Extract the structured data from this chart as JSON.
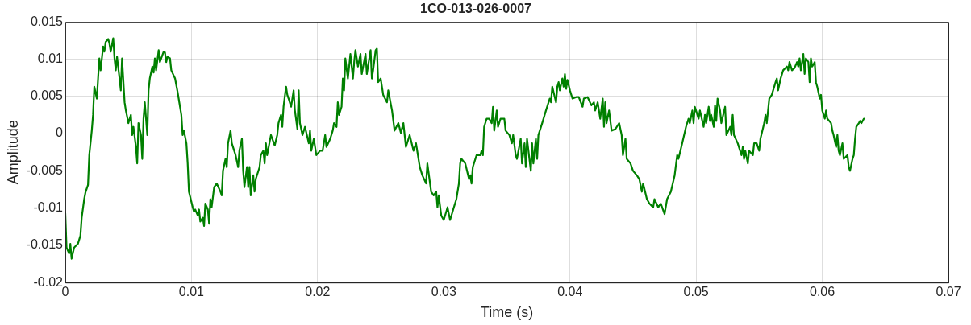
{
  "chart_data": {
    "type": "line",
    "title": "1CO-013-026-0007",
    "xlabel": "Time (s)",
    "ylabel": "Amplitude",
    "xlim": [
      0,
      0.07
    ],
    "xticks": [
      0,
      0.01,
      0.02,
      0.03,
      0.04,
      0.05,
      0.06,
      0.07
    ],
    "ylim": [
      -0.02,
      0.015
    ],
    "yticks": [
      -0.02,
      -0.015,
      -0.01,
      -0.005,
      0,
      0.005,
      0.01,
      0.015
    ],
    "grid": true,
    "legend": false,
    "marker": "none",
    "line_style": "solid",
    "series": [
      {
        "color": "#008000",
        "x": [
          0,
          0.0001,
          0.0003,
          0.0004,
          0.0005,
          0.0007,
          0.001,
          0.0012,
          0.0013,
          0.0015,
          0.0016,
          0.0018,
          0.0019,
          0.0021,
          0.0022,
          0.0023,
          0.0025,
          0.0026,
          0.0027,
          0.0028,
          0.003,
          0.0031,
          0.0032,
          0.0034,
          0.0035,
          0.0036,
          0.0038,
          0.0039,
          0.004,
          0.0041,
          0.0043,
          0.0044,
          0.0045,
          0.0047,
          0.0048,
          0.0049,
          0.005,
          0.0052,
          0.0053,
          0.0054,
          0.0056,
          0.0057,
          0.0058,
          0.006,
          0.0061,
          0.0062,
          0.0063,
          0.0065,
          0.0066,
          0.0067,
          0.0069,
          0.007,
          0.0071,
          0.0072,
          0.0074,
          0.0075,
          0.0076,
          0.0078,
          0.0079,
          0.008,
          0.0081,
          0.0083,
          0.0084,
          0.0087,
          0.0089,
          0.0092,
          0.0093,
          0.0094,
          0.0096,
          0.0097,
          0.0098,
          0.0101,
          0.0102,
          0.0103,
          0.0105,
          0.0106,
          0.0107,
          0.0109,
          0.011,
          0.0111,
          0.0113,
          0.0114,
          0.0115,
          0.0116,
          0.0118,
          0.012,
          0.0123,
          0.0124,
          0.0125,
          0.0127,
          0.0128,
          0.0129,
          0.0131,
          0.0132,
          0.0135,
          0.0137,
          0.0138,
          0.014,
          0.0141,
          0.0142,
          0.0144,
          0.0145,
          0.0146,
          0.0147,
          0.0149,
          0.015,
          0.0151,
          0.0154,
          0.0155,
          0.0157,
          0.0158,
          0.0159,
          0.016,
          0.0163,
          0.0166,
          0.0168,
          0.0169,
          0.0171,
          0.0172,
          0.0173,
          0.0175,
          0.0176,
          0.0177,
          0.0179,
          0.0181,
          0.0182,
          0.0184,
          0.0185,
          0.0186,
          0.0188,
          0.019,
          0.0193,
          0.0194,
          0.0195,
          0.0197,
          0.0199,
          0.0202,
          0.0204,
          0.0206,
          0.0207,
          0.021,
          0.0212,
          0.0213,
          0.0215,
          0.0216,
          0.0217,
          0.0219,
          0.022,
          0.0221,
          0.0222,
          0.0224,
          0.0225,
          0.0226,
          0.0228,
          0.0229,
          0.023,
          0.0232,
          0.0234,
          0.0235,
          0.0238,
          0.0239,
          0.0242,
          0.0243,
          0.0244,
          0.0246,
          0.0247,
          0.0248,
          0.025,
          0.0252,
          0.0255,
          0.0256,
          0.0259,
          0.0261,
          0.0264,
          0.0266,
          0.0268,
          0.027,
          0.0273,
          0.0276,
          0.0278,
          0.0281,
          0.0283,
          0.0286,
          0.0287,
          0.029,
          0.0292,
          0.0294,
          0.0295,
          0.0296,
          0.0298,
          0.03,
          0.0303,
          0.0305,
          0.0308,
          0.031,
          0.0312,
          0.0313,
          0.0314,
          0.0317,
          0.032,
          0.0321,
          0.0322,
          0.0323,
          0.0326,
          0.0329,
          0.033,
          0.0331,
          0.0332,
          0.0334,
          0.0336,
          0.0338,
          0.0339,
          0.034,
          0.0342,
          0.0343,
          0.0345,
          0.0348,
          0.0349,
          0.0352,
          0.0354,
          0.0355,
          0.0357,
          0.0358,
          0.0361,
          0.0362,
          0.0364,
          0.0365,
          0.0366,
          0.0369,
          0.037,
          0.0371,
          0.0373,
          0.0374,
          0.0375,
          0.0378,
          0.0381,
          0.0384,
          0.0385,
          0.0386,
          0.0389,
          0.039,
          0.0391,
          0.0392,
          0.0394,
          0.0395,
          0.0396,
          0.0397,
          0.0398,
          0.04,
          0.0402,
          0.0405,
          0.0407,
          0.041,
          0.0411,
          0.0414,
          0.0417,
          0.0419,
          0.042,
          0.0422,
          0.0424,
          0.0426,
          0.0427,
          0.0428,
          0.0429,
          0.0431,
          0.0433,
          0.0436,
          0.0439,
          0.0441,
          0.0442,
          0.0444,
          0.0445,
          0.0448,
          0.045,
          0.0453,
          0.0455,
          0.0457,
          0.0458,
          0.0461,
          0.0463,
          0.0466,
          0.0467,
          0.047,
          0.0472,
          0.0475,
          0.0477,
          0.048,
          0.0483,
          0.0485,
          0.0486,
          0.0489,
          0.0492,
          0.0494,
          0.0495,
          0.0497,
          0.0498,
          0.0499,
          0.0502,
          0.0503,
          0.0506,
          0.0507,
          0.0508,
          0.051,
          0.0511,
          0.0512,
          0.0514,
          0.0515,
          0.0516,
          0.0517,
          0.0519,
          0.052,
          0.0523,
          0.0524,
          0.0527,
          0.0528,
          0.0529,
          0.053,
          0.0533,
          0.0536,
          0.0537,
          0.0538,
          0.0539,
          0.0541,
          0.0542,
          0.0545,
          0.0546,
          0.0548,
          0.055,
          0.0551,
          0.0554,
          0.0555,
          0.0556,
          0.0558,
          0.056,
          0.0563,
          0.0564,
          0.0565,
          0.0567,
          0.0569,
          0.0572,
          0.0573,
          0.0574,
          0.0576,
          0.0578,
          0.058,
          0.0581,
          0.0582,
          0.0583,
          0.0585,
          0.0586,
          0.0587,
          0.0589,
          0.059,
          0.0591,
          0.0592,
          0.0594,
          0.0595,
          0.0596,
          0.0598,
          0.0599,
          0.06,
          0.0602,
          0.0603,
          0.0604,
          0.0607,
          0.0608,
          0.0609,
          0.0611,
          0.0612,
          0.0613,
          0.0614,
          0.0616,
          0.0617,
          0.062,
          0.0621,
          0.0622,
          0.0624,
          0.0625,
          0.0626,
          0.0627,
          0.0629,
          0.063,
          0.0631,
          0.0633
        ],
        "values": [
          -0.0107,
          -0.0153,
          -0.0161,
          -0.0148,
          -0.0168,
          -0.0153,
          -0.0148,
          -0.0137,
          -0.0113,
          -0.0088,
          -0.0079,
          -0.0069,
          -0.0029,
          0.0004,
          0.0025,
          0.0063,
          0.0047,
          0.0074,
          0.0101,
          0.0085,
          0.0117,
          0.011,
          0.0123,
          0.0127,
          0.0121,
          0.011,
          0.0128,
          0.0101,
          0.0085,
          0.0103,
          0.0074,
          0.0058,
          0.0101,
          0.0042,
          0.0031,
          0.0023,
          0.0014,
          0.0025,
          -0.0002,
          0.0009,
          -0.0018,
          -0.004,
          0.0014,
          -0.0002,
          -0.0034,
          0.002,
          0.0042,
          -0.0002,
          0.0058,
          0.0074,
          0.009,
          0.0082,
          0.0101,
          0.0085,
          0.0112,
          0.0096,
          0.0101,
          0.011,
          0.0109,
          0.0096,
          0.0103,
          0.0101,
          0.0085,
          0.0074,
          0.0056,
          0.0025,
          -0.0002,
          0.0004,
          -0.0013,
          -0.004,
          -0.0078,
          -0.0099,
          -0.0105,
          -0.0102,
          -0.011,
          -0.0102,
          -0.0118,
          -0.0113,
          -0.0124,
          -0.0094,
          -0.0102,
          -0.0121,
          -0.0088,
          -0.0099,
          -0.0072,
          -0.0067,
          -0.0078,
          -0.0083,
          -0.005,
          -0.0034,
          -0.0045,
          -0.0013,
          0.0004,
          -0.0013,
          -0.0029,
          -0.0045,
          -0.0023,
          -0.0007,
          -0.005,
          -0.0072,
          -0.0045,
          -0.0072,
          -0.0045,
          -0.0083,
          -0.0056,
          -0.0078,
          -0.0061,
          -0.0045,
          -0.0029,
          -0.0023,
          -0.004,
          -0.0013,
          -0.0029,
          -0.0002,
          -0.0016,
          -0.0002,
          0.0014,
          0.0025,
          0.0009,
          0.0036,
          0.0063,
          0.0052,
          0.0047,
          0.0036,
          0.0058,
          0.0031,
          0.0006,
          0.0058,
          0.0014,
          -0.0002,
          0.0009,
          -0.0013,
          0.0004,
          -0.0023,
          -0.0007,
          -0.0029,
          -0.0023,
          -0.0023,
          -0.0002,
          -0.0018,
          -0.0007,
          0.0004,
          0.0014,
          0.0009,
          0.0042,
          0.0025,
          0.0036,
          0.0074,
          0.0058,
          0.0101,
          0.0074,
          0.009,
          0.0107,
          0.0074,
          0.0096,
          0.0112,
          0.009,
          0.0107,
          0.008,
          0.0107,
          0.008,
          0.0112,
          0.0074,
          0.0085,
          0.0112,
          0.0114,
          0.0069,
          0.0074,
          0.0052,
          0.0042,
          0.0058,
          0.0031,
          0.0004,
          0.0014,
          0.0001,
          0.0014,
          -0.0018,
          -0.0002,
          -0.0023,
          -0.0013,
          -0.0045,
          -0.0056,
          -0.0067,
          -0.004,
          -0.0078,
          -0.0083,
          -0.0078,
          -0.0099,
          -0.0083,
          -0.011,
          -0.0116,
          -0.0099,
          -0.0116,
          -0.0099,
          -0.0088,
          -0.0067,
          -0.004,
          -0.0034,
          -0.004,
          -0.0061,
          -0.0056,
          -0.0067,
          -0.0045,
          -0.0029,
          -0.0029,
          -0.0023,
          -0.0029,
          0.0009,
          0.002,
          0.002,
          0.0014,
          0.0036,
          0.0004,
          0.0031,
          0.0009,
          0.002,
          0.002,
          0.0004,
          -0.0002,
          -0.0013,
          -0.0002,
          -0.0029,
          -0.0034,
          -0.0007,
          -0.004,
          -0.0013,
          -0.0045,
          -0.0007,
          -0.005,
          -0.0013,
          -0.004,
          -0.0007,
          -0.0034,
          -0.0002,
          0.0014,
          0.0031,
          0.0047,
          0.0042,
          0.0063,
          0.0042,
          0.0063,
          0.0069,
          0.0058,
          0.0074,
          0.0063,
          0.008,
          0.006,
          0.0072,
          0.0058,
          0.0047,
          0.0049,
          0.0049,
          0.0036,
          0.0047,
          0.0049,
          0.0038,
          0.0042,
          0.0031,
          0.0042,
          0.002,
          0.0047,
          0.0009,
          0.0042,
          0.0014,
          0.0031,
          0.0004,
          0.0006,
          0.0014,
          -0.0002,
          -0.0029,
          -0.0007,
          -0.0034,
          -0.004,
          -0.005,
          -0.0056,
          -0.0061,
          -0.0078,
          -0.0067,
          -0.0088,
          -0.0094,
          -0.0099,
          -0.0088,
          -0.0099,
          -0.0094,
          -0.0108,
          -0.0088,
          -0.0078,
          -0.0056,
          -0.0029,
          -0.0034,
          -0.0013,
          0.0009,
          0.002,
          0.0014,
          0.0031,
          0.0014,
          0.0036,
          0.002,
          0.0031,
          0.0009,
          0.0025,
          0.0014,
          0.0036,
          0.0017,
          0.0025,
          0.0009,
          0.0038,
          0.0017,
          0.0047,
          0.0031,
          0.0014,
          0.0036,
          -0.0002,
          0.0009,
          -0.0002,
          0.0025,
          -0.0002,
          -0.0013,
          -0.0029,
          -0.0018,
          -0.0034,
          -0.0023,
          -0.004,
          -0.0023,
          -0.0029,
          -0.0013,
          -0.0013,
          -0.0023,
          -0.0007,
          0.0014,
          0.0025,
          0.0014,
          0.0047,
          0.0052,
          0.0069,
          0.0074,
          0.0058,
          0.0074,
          0.0085,
          0.009,
          0.0085,
          0.0096,
          0.0085,
          0.0088,
          0.0096,
          0.009,
          0.0101,
          0.0085,
          0.0107,
          0.008,
          0.0101,
          0.0096,
          0.0069,
          0.0101,
          0.009,
          0.0096,
          0.0069,
          0.0063,
          0.0047,
          0.0052,
          0.0031,
          0.002,
          0.0031,
          0.002,
          0.0014,
          0.0004,
          -0.0002,
          -0.0018,
          -0.0002,
          -0.0023,
          -0.0029,
          -0.0013,
          -0.0034,
          -0.0029,
          -0.0045,
          -0.005,
          -0.0034,
          -0.0029,
          -0.0007,
          0.0009,
          0.0014,
          0.0017,
          0.0014,
          0.002
        ]
      }
    ]
  }
}
